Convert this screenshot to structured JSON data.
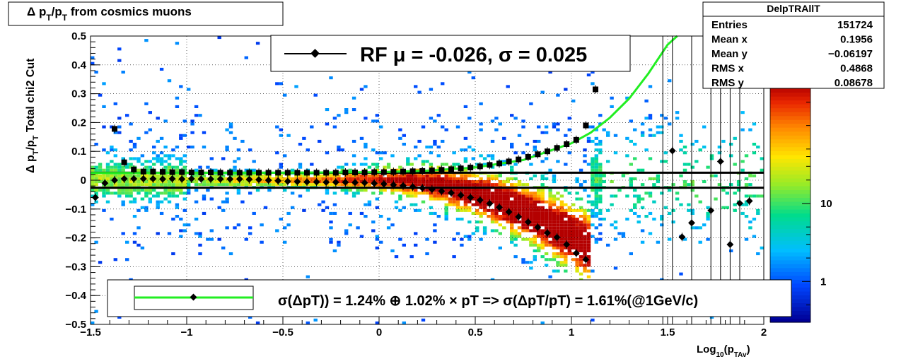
{
  "title": "Δ p_T/p_T from cosmics muons",
  "title_parts": {
    "delta": "Δ p",
    "sub1": "T",
    "slash": "/p",
    "sub2": "T",
    "rest": " from cosmics muons"
  },
  "stats": {
    "name": "DelpTRAllT",
    "rows": [
      {
        "label": "Entries",
        "value": "151724"
      },
      {
        "label": "Mean x",
        "value": "0.1956"
      },
      {
        "label": "Mean y",
        "value": "−0.06197"
      },
      {
        "label": "RMS x",
        "value": "0.4868"
      },
      {
        "label": "RMS y",
        "value": "0.08678"
      }
    ]
  },
  "legend_top": "RF μ = -0.026, σ =   0.025",
  "legend_bottom": "σ(ΔpT)) =  1.24% ⊕  1.02% × pT => σ(ΔpT/pT) =  1.61%(@1GeV/c)",
  "ylabel": {
    "delta": "Δ p",
    "sub1": "T",
    "slash": "/p",
    "sub2": "T",
    "cut": "   Total chi2 Cut"
  },
  "xlabel": {
    "log": "Log",
    "sub": "10",
    "open": "(p",
    "sub2": "TAv",
    "close": ")"
  },
  "colors": {
    "fit_curve": "#22ee22",
    "markers": "#000000",
    "frame": "#000000"
  },
  "chart_data": {
    "type": "heatmap",
    "xlim": [
      -1.5,
      2.0
    ],
    "ylim": [
      -0.5,
      0.5
    ],
    "grid": true,
    "legend_placement": "top-center",
    "xticks": [
      {
        "v": -1.5,
        "label": "−1.5"
      },
      {
        "v": -1.0,
        "label": "−1"
      },
      {
        "v": -0.5,
        "label": "−0.5"
      },
      {
        "v": 0.0,
        "label": "0"
      },
      {
        "v": 0.5,
        "label": "0.5"
      },
      {
        "v": 1.0,
        "label": "1"
      },
      {
        "v": 1.5,
        "label": "1.5"
      },
      {
        "v": 2.0,
        "label": "2"
      }
    ],
    "yticks": [
      {
        "v": 0.5,
        "label": "0.5"
      },
      {
        "v": 0.4,
        "label": "0.4"
      },
      {
        "v": 0.3,
        "label": "0.3"
      },
      {
        "v": 0.2,
        "label": "0.2"
      },
      {
        "v": 0.1,
        "label": "0.1"
      },
      {
        "v": 0.0,
        "label": "0"
      },
      {
        "v": -0.1,
        "label": "−0.1"
      },
      {
        "v": -0.2,
        "label": "−0.2"
      },
      {
        "v": -0.3,
        "label": "−0.3"
      },
      {
        "v": -0.4,
        "label": "−0.4"
      },
      {
        "v": -0.5,
        "label": "−0.5"
      }
    ],
    "colorbar": {
      "scale": "log",
      "ticks": [
        {
          "v": 1,
          "label": "1"
        },
        {
          "v": 10,
          "label": "10"
        }
      ],
      "range": [
        0.3,
        300
      ]
    },
    "mean_line": {
      "y": -0.026
    },
    "sigma_line": {
      "y": 0.026
    },
    "mean_points": [
      {
        "x": -1.475,
        "y": -0.06
      },
      {
        "x": -1.425,
        "y": -0.01
      },
      {
        "x": -1.375,
        "y": 0.0
      },
      {
        "x": -1.325,
        "y": 0.005
      },
      {
        "x": -1.275,
        "y": 0.005
      },
      {
        "x": -1.225,
        "y": 0.005
      },
      {
        "x": -1.175,
        "y": 0.005
      },
      {
        "x": -1.125,
        "y": 0.004
      },
      {
        "x": -1.075,
        "y": 0.005
      },
      {
        "x": -1.025,
        "y": 0.004
      },
      {
        "x": -0.975,
        "y": 0.005
      },
      {
        "x": -0.925,
        "y": 0.004
      },
      {
        "x": -0.875,
        "y": 0.004
      },
      {
        "x": -0.825,
        "y": 0.004
      },
      {
        "x": -0.775,
        "y": 0.004
      },
      {
        "x": -0.725,
        "y": 0.004
      },
      {
        "x": -0.675,
        "y": 0.003
      },
      {
        "x": -0.625,
        "y": 0.002
      },
      {
        "x": -0.575,
        "y": 0.0
      },
      {
        "x": -0.525,
        "y": -0.002
      },
      {
        "x": -0.475,
        "y": -0.004
      },
      {
        "x": -0.425,
        "y": -0.005
      },
      {
        "x": -0.375,
        "y": -0.006
      },
      {
        "x": -0.325,
        "y": -0.006
      },
      {
        "x": -0.275,
        "y": -0.007
      },
      {
        "x": -0.225,
        "y": -0.007
      },
      {
        "x": -0.175,
        "y": -0.007
      },
      {
        "x": -0.125,
        "y": -0.008
      },
      {
        "x": -0.075,
        "y": -0.009
      },
      {
        "x": -0.025,
        "y": -0.011
      },
      {
        "x": 0.025,
        "y": -0.013
      },
      {
        "x": 0.075,
        "y": -0.016
      },
      {
        "x": 0.125,
        "y": -0.019
      },
      {
        "x": 0.175,
        "y": -0.023
      },
      {
        "x": 0.225,
        "y": -0.027
      },
      {
        "x": 0.275,
        "y": -0.032
      },
      {
        "x": 0.325,
        "y": -0.038
      },
      {
        "x": 0.375,
        "y": -0.044
      },
      {
        "x": 0.425,
        "y": -0.052
      },
      {
        "x": 0.475,
        "y": -0.06
      },
      {
        "x": 0.525,
        "y": -0.069
      },
      {
        "x": 0.575,
        "y": -0.081
      },
      {
        "x": 0.625,
        "y": -0.094
      },
      {
        "x": 0.675,
        "y": -0.11
      },
      {
        "x": 0.725,
        "y": -0.127
      },
      {
        "x": 0.775,
        "y": -0.145
      },
      {
        "x": 0.825,
        "y": -0.163
      },
      {
        "x": 0.875,
        "y": -0.183
      },
      {
        "x": 0.925,
        "y": -0.198
      },
      {
        "x": 0.975,
        "y": -0.223
      },
      {
        "x": 1.025,
        "y": -0.253
      },
      {
        "x": 1.075,
        "y": -0.275
      },
      {
        "x": 1.525,
        "y": 0.102
      },
      {
        "x": 1.575,
        "y": -0.197
      },
      {
        "x": 1.625,
        "y": -0.148
      },
      {
        "x": 1.725,
        "y": -0.105
      },
      {
        "x": 1.775,
        "y": 0.065
      },
      {
        "x": 1.825,
        "y": -0.223
      },
      {
        "x": 1.875,
        "y": -0.08
      },
      {
        "x": 1.925,
        "y": -0.072
      }
    ],
    "sigma_points": [
      {
        "x": -1.375,
        "y": 0.178
      },
      {
        "x": -1.325,
        "y": 0.062
      },
      {
        "x": -1.275,
        "y": 0.037
      },
      {
        "x": -1.225,
        "y": 0.03
      },
      {
        "x": -1.175,
        "y": 0.03
      },
      {
        "x": -1.125,
        "y": 0.029
      },
      {
        "x": -1.075,
        "y": 0.028
      },
      {
        "x": -1.025,
        "y": 0.028
      },
      {
        "x": -0.975,
        "y": 0.027
      },
      {
        "x": -0.925,
        "y": 0.027
      },
      {
        "x": -0.875,
        "y": 0.027
      },
      {
        "x": -0.825,
        "y": 0.026
      },
      {
        "x": -0.775,
        "y": 0.026
      },
      {
        "x": -0.725,
        "y": 0.026
      },
      {
        "x": -0.675,
        "y": 0.026
      },
      {
        "x": -0.625,
        "y": 0.026
      },
      {
        "x": -0.575,
        "y": 0.026
      },
      {
        "x": -0.525,
        "y": 0.026
      },
      {
        "x": -0.475,
        "y": 0.026
      },
      {
        "x": -0.425,
        "y": 0.026
      },
      {
        "x": -0.375,
        "y": 0.026
      },
      {
        "x": -0.325,
        "y": 0.026
      },
      {
        "x": -0.275,
        "y": 0.026
      },
      {
        "x": -0.225,
        "y": 0.026
      },
      {
        "x": -0.175,
        "y": 0.027
      },
      {
        "x": -0.125,
        "y": 0.027
      },
      {
        "x": -0.075,
        "y": 0.027
      },
      {
        "x": -0.025,
        "y": 0.028
      },
      {
        "x": 0.025,
        "y": 0.028
      },
      {
        "x": 0.075,
        "y": 0.029
      },
      {
        "x": 0.125,
        "y": 0.03
      },
      {
        "x": 0.175,
        "y": 0.031
      },
      {
        "x": 0.225,
        "y": 0.032
      },
      {
        "x": 0.275,
        "y": 0.034
      },
      {
        "x": 0.325,
        "y": 0.036
      },
      {
        "x": 0.375,
        "y": 0.038
      },
      {
        "x": 0.425,
        "y": 0.041
      },
      {
        "x": 0.475,
        "y": 0.044
      },
      {
        "x": 0.525,
        "y": 0.048
      },
      {
        "x": 0.575,
        "y": 0.053
      },
      {
        "x": 0.625,
        "y": 0.058
      },
      {
        "x": 0.675,
        "y": 0.065
      },
      {
        "x": 0.725,
        "y": 0.072
      },
      {
        "x": 0.775,
        "y": 0.081
      },
      {
        "x": 0.825,
        "y": 0.09
      },
      {
        "x": 0.875,
        "y": 0.1
      },
      {
        "x": 0.925,
        "y": 0.112
      },
      {
        "x": 0.975,
        "y": 0.125
      },
      {
        "x": 1.025,
        "y": 0.14
      },
      {
        "x": 1.075,
        "y": 0.19
      },
      {
        "x": 1.125,
        "y": 0.315
      }
    ],
    "fit_curve": [
      {
        "x": -1.5,
        "y": 0.025
      },
      {
        "x": -1.0,
        "y": 0.0255
      },
      {
        "x": -0.5,
        "y": 0.026
      },
      {
        "x": 0.0,
        "y": 0.028
      },
      {
        "x": 0.25,
        "y": 0.033
      },
      {
        "x": 0.5,
        "y": 0.044
      },
      {
        "x": 0.75,
        "y": 0.07
      },
      {
        "x": 1.0,
        "y": 0.128
      },
      {
        "x": 1.1,
        "y": 0.165
      },
      {
        "x": 1.2,
        "y": 0.217
      },
      {
        "x": 1.3,
        "y": 0.283
      },
      {
        "x": 1.4,
        "y": 0.37
      },
      {
        "x": 1.5,
        "y": 0.47
      },
      {
        "x": 1.55,
        "y": 0.5
      }
    ]
  }
}
